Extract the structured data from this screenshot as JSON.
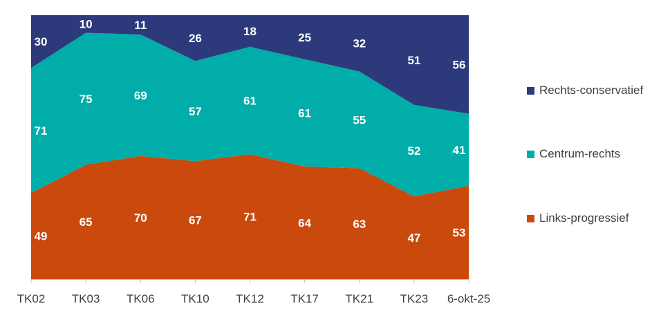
{
  "chart_data": {
    "type": "area",
    "stacked": true,
    "normalized_to_percent": true,
    "categories": [
      "TK02",
      "TK03",
      "TK06",
      "TK10",
      "TK12",
      "TK17",
      "TK21",
      "TK23",
      "6-okt-25"
    ],
    "series": [
      {
        "name": "Links-progressief",
        "color": "#C94A0C",
        "values": [
          49,
          65,
          70,
          67,
          71,
          64,
          63,
          47,
          53
        ]
      },
      {
        "name": "Centrum-rechts",
        "color": "#00ADA9",
        "values": [
          71,
          75,
          69,
          57,
          61,
          61,
          55,
          52,
          41
        ]
      },
      {
        "name": "Rechts-conservatief",
        "color": "#2C3A7C",
        "values": [
          30,
          10,
          11,
          26,
          18,
          25,
          32,
          51,
          56
        ]
      }
    ],
    "legend_position": "right",
    "grid": false
  },
  "legend": {
    "items": [
      {
        "label": "Rechts-conservatief",
        "color": "#2C3A7C"
      },
      {
        "label": "Centrum-rechts",
        "color": "#00ADA9"
      },
      {
        "label": "Links-progressief",
        "color": "#C94A0C"
      }
    ]
  }
}
